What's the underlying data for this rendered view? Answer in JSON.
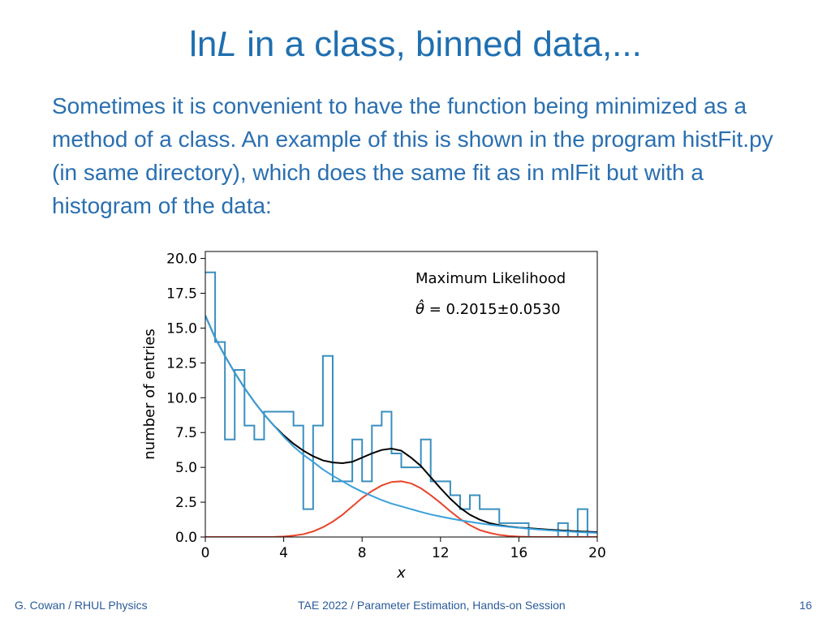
{
  "slide": {
    "title_prefix": "ln",
    "title_italic": "L",
    "title_rest": " in a class, binned data,...",
    "body": "Sometimes it is convenient to have the function being minimized as a method of a class.  An example of this is shown in the program histFit.py (in same directory), which does the same fit as in mlFit but with a histogram of the data:"
  },
  "footer": {
    "left": "G. Cowan / RHUL Physics",
    "center": "TAE 2022 / Parameter Estimation, Hands-on Session",
    "page": "16"
  },
  "chart_data": {
    "type": "line",
    "title": "",
    "xlabel": "x",
    "ylabel": "number of entries",
    "xlim": [
      0,
      20
    ],
    "ylim": [
      0,
      20.5
    ],
    "x_ticks": [
      "0",
      "4",
      "8",
      "12",
      "16",
      "20"
    ],
    "y_ticks": [
      "0.0",
      "2.5",
      "5.0",
      "7.5",
      "10.0",
      "12.5",
      "15.0",
      "17.5",
      "20.0"
    ],
    "grid": false,
    "annotation": {
      "line1": "Maximum Likelihood",
      "theta_symbol": "θ̂",
      "equals": " = ",
      "value": "0.2015±0.0530"
    },
    "histogram": {
      "color": "#3a8fbf",
      "bin_edges": [
        0,
        0.5,
        1,
        1.5,
        2,
        2.5,
        3,
        3.5,
        4,
        4.5,
        5,
        5.5,
        6,
        6.5,
        7,
        7.5,
        8,
        8.5,
        9,
        9.5,
        10,
        10.5,
        11,
        11.5,
        12,
        12.5,
        13,
        13.5,
        14,
        14.5,
        15,
        15.5,
        16,
        16.5,
        17,
        17.5,
        18,
        18.5,
        19,
        19.5,
        20
      ],
      "counts": [
        19,
        14,
        7,
        12,
        8,
        7,
        9,
        9,
        9,
        8,
        2,
        8,
        13,
        4,
        4,
        7,
        4,
        8,
        9,
        6,
        5,
        5,
        7,
        4,
        4,
        3,
        2,
        3,
        2,
        2,
        1,
        1,
        1,
        0,
        0,
        0,
        1,
        0,
        2,
        0
      ]
    },
    "series": [
      {
        "color": "#000000",
        "x": [
          0,
          0.5,
          1,
          1.5,
          2,
          2.5,
          3,
          3.5,
          4,
          4.5,
          5,
          5.5,
          6,
          6.5,
          7,
          7.5,
          8,
          8.5,
          9,
          9.5,
          10,
          10.5,
          11,
          11.5,
          12,
          12.5,
          13,
          13.5,
          14,
          14.5,
          15,
          15.5,
          16,
          16.5,
          17,
          17.5,
          18,
          18.5,
          19,
          19.5,
          20
        ],
        "y": [
          15.9,
          14.3,
          13.0,
          11.8,
          10.7,
          9.7,
          8.8,
          8.0,
          7.3,
          6.7,
          6.2,
          5.8,
          5.5,
          5.35,
          5.3,
          5.4,
          5.7,
          6.0,
          6.25,
          6.35,
          6.2,
          5.7,
          5.1,
          4.3,
          3.5,
          2.75,
          2.1,
          1.6,
          1.25,
          1.0,
          0.85,
          0.75,
          0.68,
          0.63,
          0.58,
          0.53,
          0.49,
          0.45,
          0.41,
          0.38,
          0.35
        ]
      },
      {
        "color": "#e8452c",
        "x": [
          0,
          0.5,
          1,
          1.5,
          2,
          2.5,
          3,
          3.5,
          4,
          4.5,
          5,
          5.5,
          6,
          6.5,
          7,
          7.5,
          8,
          8.5,
          9,
          9.5,
          10,
          10.5,
          11,
          11.5,
          12,
          12.5,
          13,
          13.5,
          14,
          14.5,
          15,
          15.5,
          16,
          16.5,
          17,
          17.5,
          18,
          18.5,
          19,
          19.5,
          20
        ],
        "y": [
          0,
          0,
          0,
          0,
          0,
          0,
          0,
          0.01,
          0.04,
          0.1,
          0.2,
          0.4,
          0.7,
          1.1,
          1.6,
          2.2,
          2.8,
          3.3,
          3.7,
          3.95,
          4.0,
          3.85,
          3.5,
          3.0,
          2.45,
          1.85,
          1.3,
          0.85,
          0.5,
          0.3,
          0.15,
          0.07,
          0.03,
          0.01,
          0,
          0,
          0,
          0,
          0,
          0,
          0
        ]
      },
      {
        "color": "#3aa0dc",
        "x": [
          0,
          0.5,
          1,
          1.5,
          2,
          2.5,
          3,
          3.5,
          4,
          4.5,
          5,
          5.5,
          6,
          6.5,
          7,
          7.5,
          8,
          8.5,
          9,
          9.5,
          10,
          10.5,
          11,
          11.5,
          12,
          12.5,
          13,
          13.5,
          14,
          14.5,
          15,
          15.5,
          16,
          16.5,
          17,
          17.5,
          18,
          18.5,
          19,
          19.5,
          20
        ],
        "y": [
          15.9,
          14.3,
          13.0,
          11.8,
          10.7,
          9.7,
          8.8,
          8.0,
          7.2,
          6.5,
          5.9,
          5.4,
          4.85,
          4.4,
          4.0,
          3.6,
          3.25,
          2.95,
          2.65,
          2.4,
          2.2,
          2.0,
          1.8,
          1.62,
          1.47,
          1.33,
          1.2,
          1.09,
          0.98,
          0.89,
          0.8,
          0.73,
          0.66,
          0.6,
          0.54,
          0.49,
          0.44,
          0.4,
          0.36,
          0.33,
          0.3
        ]
      }
    ]
  }
}
